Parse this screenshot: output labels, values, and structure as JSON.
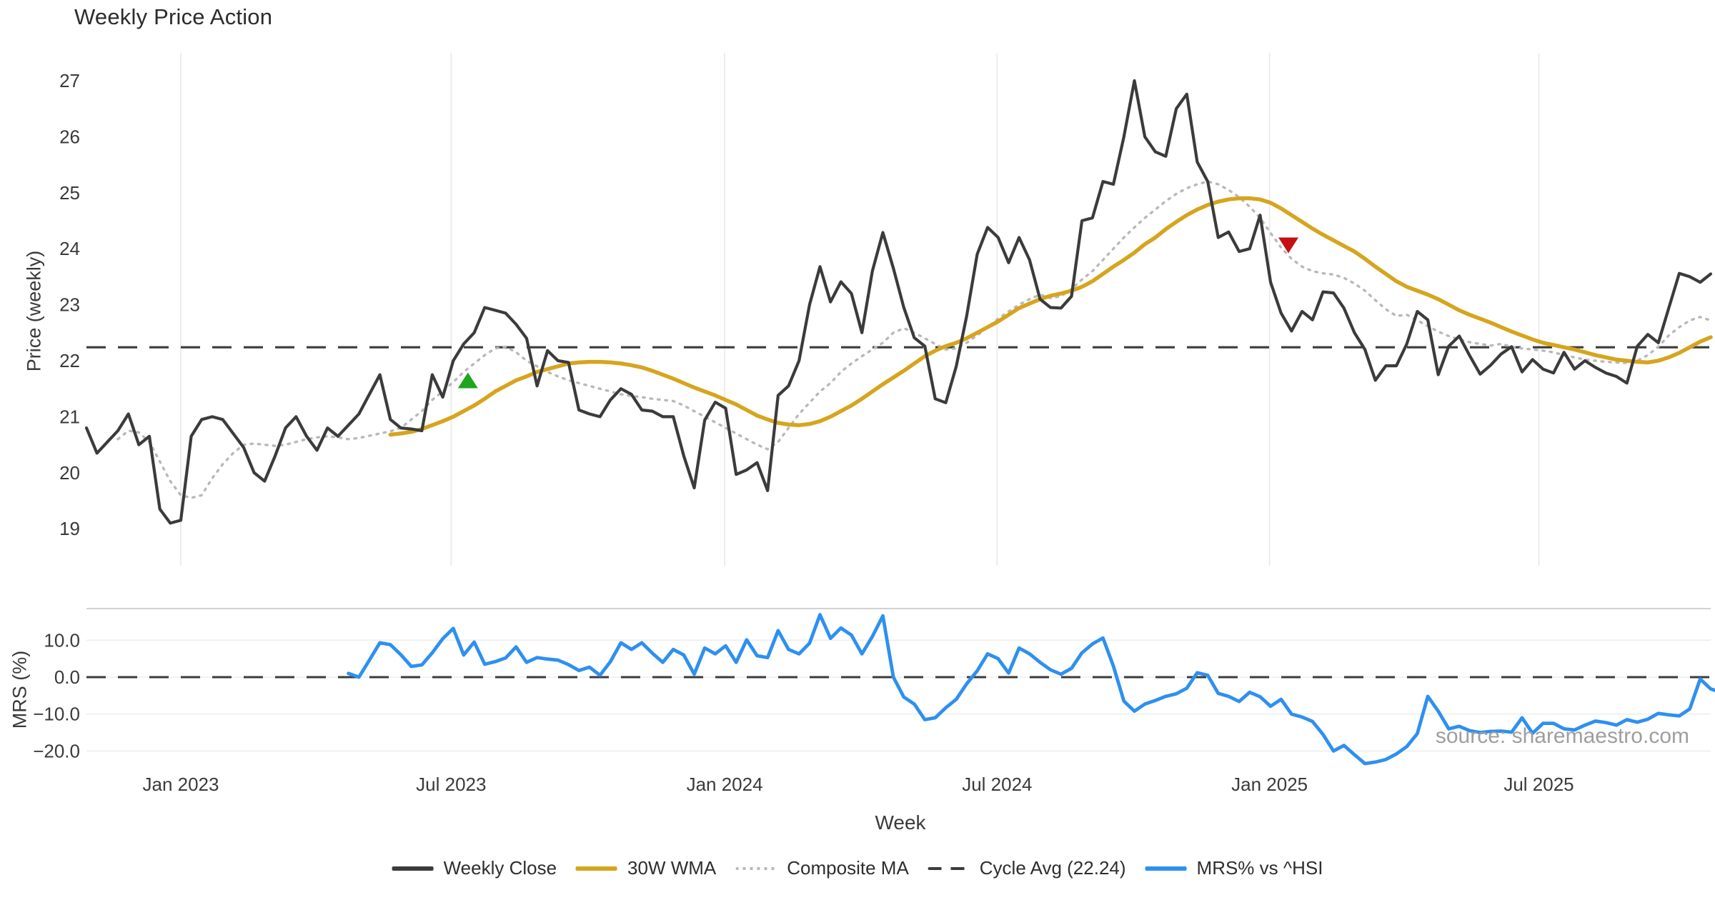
{
  "chart_data": {
    "type": "line",
    "title": "Weekly Price Action",
    "xlabel": "Week",
    "ylabel_price": "Price (weekly)",
    "ylabel_mrs": "MRS (%)",
    "source_text": "source: sharemaestro.com",
    "grid": true,
    "legend_position": "bottom-center",
    "price_ylim": [
      18.45,
      27.5
    ],
    "mrs_ylim": [
      -24.2,
      18.6
    ],
    "cycle_avg_value": 22.24,
    "colors": {
      "close": "#3b3b3b",
      "wma": "#d6a51e",
      "composite": "#b9b9b9",
      "cycle_dash": "#3b3b3b",
      "mrs": "#2e90ef",
      "buy_marker": "#1fa51f",
      "sell_marker": "#c41111",
      "grid_v": "#e8e8e8",
      "grid_h": "#eeeeee",
      "spine": "#cccccc",
      "tick_text": "#3a3a3a"
    },
    "x_ticks": [
      {
        "label": "Jan 2023",
        "t": 9
      },
      {
        "label": "Jul 2023",
        "t": 34.8
      },
      {
        "label": "Jan 2024",
        "t": 60.9
      },
      {
        "label": "Jul 2024",
        "t": 86.9
      },
      {
        "label": "Jan 2025",
        "t": 112.9
      },
      {
        "label": "Jul 2025",
        "t": 138.6
      }
    ],
    "price_ticks": [
      {
        "label": "27",
        "v": 27
      },
      {
        "label": "26",
        "v": 26
      },
      {
        "label": "25",
        "v": 25
      },
      {
        "label": "24",
        "v": 24
      },
      {
        "label": "23",
        "v": 23
      },
      {
        "label": "22",
        "v": 22
      },
      {
        "label": "21",
        "v": 21
      },
      {
        "label": "20",
        "v": 20
      },
      {
        "label": "19",
        "v": 19
      }
    ],
    "mrs_ticks": [
      {
        "label": "10.0",
        "v": 10
      },
      {
        "label": "0.0",
        "v": 0
      },
      {
        "label": "−10.0",
        "v": -10
      },
      {
        "label": "−20.0",
        "v": -20
      }
    ],
    "markers": [
      {
        "type": "buy-up-triangle",
        "t": 36.4,
        "price": 21.65,
        "color": "#1fa51f"
      },
      {
        "type": "sell-down-triangle",
        "t": 114.7,
        "price": 24.06,
        "color": "#c41111"
      }
    ],
    "series": [
      {
        "name": "Weekly Close",
        "panel": "price",
        "style": "solid",
        "color": "#3b3b3b",
        "width": 4.2,
        "values": [
          20.8,
          20.35,
          20.55,
          20.75,
          21.05,
          20.5,
          20.65,
          19.35,
          19.1,
          19.15,
          20.65,
          20.95,
          21.0,
          20.95,
          20.7,
          20.45,
          20.0,
          19.85,
          20.3,
          20.8,
          21.0,
          20.65,
          20.4,
          20.8,
          20.65,
          20.85,
          21.05,
          21.4,
          21.75,
          20.95,
          20.8,
          20.78,
          20.75,
          21.75,
          21.35,
          22.0,
          22.3,
          22.5,
          22.95,
          22.9,
          22.85,
          22.65,
          22.4,
          21.55,
          22.18,
          22.0,
          21.97,
          21.12,
          21.05,
          21.0,
          21.3,
          21.5,
          21.4,
          21.12,
          21.1,
          21.0,
          21.0,
          20.3,
          19.73,
          20.94,
          21.26,
          21.15,
          19.97,
          20.05,
          20.18,
          19.68,
          21.38,
          21.55,
          22.0,
          23.0,
          23.68,
          23.05,
          23.41,
          23.2,
          22.5,
          23.6,
          24.29,
          23.65,
          22.95,
          22.41,
          22.26,
          21.32,
          21.25,
          21.9,
          22.8,
          23.9,
          24.38,
          24.2,
          23.75,
          24.2,
          23.8,
          23.1,
          22.95,
          22.94,
          23.15,
          24.5,
          24.55,
          25.2,
          25.15,
          26.0,
          27.0,
          26.0,
          25.73,
          25.65,
          26.5,
          26.76,
          25.55,
          25.2,
          24.2,
          24.3,
          23.95,
          24.0,
          24.6,
          23.4,
          22.85,
          22.53,
          22.88,
          22.73,
          23.23,
          23.21,
          22.94,
          22.5,
          22.2,
          21.65,
          21.91,
          21.91,
          22.3,
          22.88,
          22.73,
          21.75,
          22.26,
          22.44,
          22.09,
          21.76,
          21.92,
          22.12,
          22.25,
          21.8,
          22.02,
          21.85,
          21.78,
          22.15,
          21.85,
          22.0,
          21.88,
          21.78,
          21.72,
          21.6,
          22.26,
          22.47,
          22.32,
          22.94,
          23.56,
          23.5,
          23.4,
          23.55
        ]
      },
      {
        "name": "30W WMA",
        "panel": "price",
        "style": "solid",
        "color": "#d6a51e",
        "width": 5.5,
        "values": [
          null,
          null,
          null,
          null,
          null,
          null,
          null,
          null,
          null,
          null,
          null,
          null,
          null,
          null,
          null,
          null,
          null,
          null,
          null,
          null,
          null,
          null,
          null,
          null,
          null,
          null,
          null,
          null,
          null,
          20.68,
          20.7,
          20.73,
          20.78,
          20.85,
          20.92,
          21.0,
          21.1,
          21.2,
          21.32,
          21.45,
          21.55,
          21.65,
          21.72,
          21.8,
          21.85,
          21.9,
          21.95,
          21.97,
          21.98,
          21.98,
          21.97,
          21.95,
          21.92,
          21.88,
          21.82,
          21.75,
          21.68,
          21.6,
          21.52,
          21.45,
          21.38,
          21.3,
          21.22,
          21.12,
          21.02,
          20.95,
          20.89,
          20.86,
          20.85,
          20.87,
          20.92,
          21.0,
          21.1,
          21.2,
          21.32,
          21.45,
          21.58,
          21.7,
          21.82,
          21.95,
          22.08,
          22.18,
          22.26,
          22.32,
          22.4,
          22.5,
          22.6,
          22.7,
          22.82,
          22.94,
          23.02,
          23.1,
          23.16,
          23.2,
          23.25,
          23.32,
          23.42,
          23.55,
          23.68,
          23.8,
          23.93,
          24.08,
          24.2,
          24.35,
          24.48,
          24.6,
          24.7,
          24.78,
          24.84,
          24.88,
          24.9,
          24.9,
          24.88,
          24.82,
          24.72,
          24.6,
          24.48,
          24.36,
          24.25,
          24.15,
          24.05,
          23.95,
          23.82,
          23.68,
          23.55,
          23.42,
          23.32,
          23.25,
          23.18,
          23.1,
          23.0,
          22.9,
          22.82,
          22.75,
          22.68,
          22.6,
          22.52,
          22.45,
          22.38,
          22.32,
          22.28,
          22.24,
          22.2,
          22.15,
          22.1,
          22.06,
          22.02,
          22.0,
          21.98,
          21.97,
          22.0,
          22.06,
          22.14,
          22.24,
          22.34,
          22.42
        ]
      },
      {
        "name": "Composite MA",
        "panel": "price",
        "style": "dotted",
        "color": "#b9b9b9",
        "width": 3.4,
        "values": [
          null,
          null,
          null,
          20.6,
          20.75,
          20.72,
          20.55,
          20.2,
          19.85,
          19.6,
          19.55,
          19.6,
          19.9,
          20.15,
          20.35,
          20.5,
          20.52,
          20.5,
          20.48,
          20.5,
          20.55,
          20.6,
          20.63,
          20.65,
          20.63,
          20.6,
          20.62,
          20.66,
          20.7,
          20.74,
          20.8,
          20.95,
          21.1,
          21.3,
          21.45,
          21.62,
          21.8,
          21.95,
          22.1,
          22.22,
          22.25,
          22.15,
          22.0,
          21.9,
          21.8,
          21.72,
          21.65,
          21.6,
          21.55,
          21.5,
          21.45,
          21.4,
          21.37,
          21.35,
          21.32,
          21.3,
          21.28,
          21.2,
          21.1,
          21.0,
          20.9,
          20.8,
          20.7,
          20.6,
          20.5,
          20.42,
          20.55,
          20.8,
          21.05,
          21.25,
          21.45,
          21.6,
          21.8,
          21.95,
          22.08,
          22.2,
          22.32,
          22.5,
          22.58,
          22.5,
          22.4,
          22.3,
          22.2,
          22.22,
          22.32,
          22.45,
          22.6,
          22.75,
          22.88,
          23.0,
          23.1,
          23.18,
          23.12,
          23.15,
          23.28,
          23.45,
          23.6,
          23.8,
          24.0,
          24.2,
          24.38,
          24.55,
          24.7,
          24.85,
          24.98,
          25.08,
          25.15,
          25.2,
          25.15,
          25.05,
          24.92,
          24.75,
          24.55,
          24.28,
          24.02,
          23.82,
          23.68,
          23.6,
          23.56,
          23.54,
          23.48,
          23.38,
          23.25,
          23.08,
          22.92,
          22.8,
          22.82,
          22.72,
          22.62,
          22.52,
          22.44,
          22.38,
          22.33,
          22.3,
          22.27,
          22.3,
          22.25,
          22.22,
          22.2,
          22.18,
          22.15,
          22.1,
          22.06,
          22.02,
          22.0,
          21.98,
          21.97,
          21.96,
          22.0,
          22.1,
          22.25,
          22.45,
          22.6,
          22.72,
          22.78,
          22.72
        ]
      },
      {
        "name": "Cycle Avg (22.24)",
        "panel": "price",
        "style": "dashed",
        "color": "#3b3b3b",
        "width": 3.2,
        "hline": 22.24
      },
      {
        "name": "MRS% vs ^HSI",
        "panel": "mrs",
        "style": "solid",
        "color": "#2e90ef",
        "width": 4.8,
        "zero_line_dashed": true,
        "values": [
          null,
          null,
          null,
          null,
          null,
          null,
          null,
          null,
          null,
          null,
          null,
          null,
          null,
          null,
          null,
          null,
          null,
          null,
          null,
          null,
          null,
          null,
          null,
          null,
          null,
          1.0,
          0.0,
          4.6,
          9.3,
          8.8,
          6.1,
          2.9,
          3.3,
          6.6,
          10.4,
          13.2,
          6.0,
          9.5,
          3.5,
          4.2,
          5.2,
          8.2,
          4.0,
          5.3,
          4.9,
          4.6,
          3.4,
          1.8,
          2.7,
          0.5,
          4.2,
          9.3,
          7.5,
          9.3,
          6.5,
          4.0,
          7.5,
          6.0,
          0.8,
          7.9,
          6.3,
          8.5,
          4.0,
          10.1,
          5.8,
          5.3,
          12.6,
          7.5,
          6.3,
          9.2,
          16.9,
          10.5,
          13.3,
          11.4,
          6.3,
          11.0,
          16.6,
          0.0,
          -5.4,
          -7.3,
          -11.5,
          -11.0,
          -8.3,
          -6.0,
          -1.8,
          1.7,
          6.3,
          5.0,
          1.1,
          7.9,
          6.3,
          4.0,
          2.0,
          0.8,
          2.4,
          6.6,
          9.0,
          10.6,
          3.0,
          -6.5,
          -9.2,
          -7.3,
          -6.3,
          -5.2,
          -4.5,
          -3.0,
          1.2,
          0.5,
          -4.4,
          -5.2,
          -6.6,
          -4.1,
          -5.3,
          -7.9,
          -6.0,
          -10.0,
          -10.8,
          -12.0,
          -15.5,
          -20.0,
          -18.5,
          -21.0,
          -23.4,
          -23.0,
          -22.3,
          -20.8,
          -18.8,
          -15.3,
          -5.2,
          -9.2,
          -14.0,
          -13.3,
          -14.5,
          -15.0,
          -14.7,
          -14.6,
          -14.9,
          -11.0,
          -15.2,
          -12.5,
          -12.5,
          -14.0,
          -14.3,
          -13.0,
          -11.9,
          -12.3,
          -13.0,
          -11.5,
          -12.2,
          -11.4,
          -9.8,
          -10.2,
          -10.5,
          -8.6,
          -0.5,
          -3.2,
          -4.1
        ]
      }
    ]
  }
}
